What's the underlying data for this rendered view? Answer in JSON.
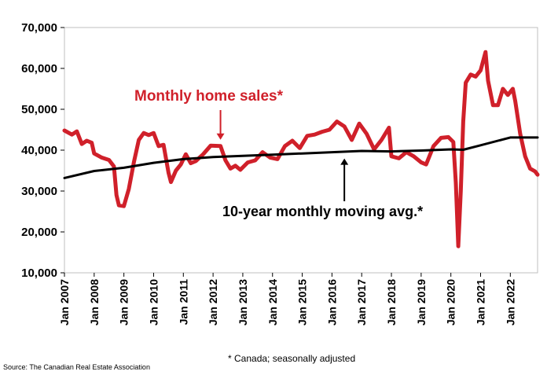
{
  "chart_data": {
    "type": "line",
    "title": "",
    "xlabel": "",
    "ylabel": "",
    "ylim": [
      10000,
      70000
    ],
    "y_ticks": [
      10000,
      20000,
      30000,
      40000,
      50000,
      60000,
      70000
    ],
    "y_tick_labels": [
      "10,000",
      "20,000",
      "30,000",
      "40,000",
      "50,000",
      "60,000",
      "70,000"
    ],
    "x_range": [
      "2007-01",
      "2022-12"
    ],
    "x_tick_labels": [
      "Jan 2007",
      "Jan 2008",
      "Jan 2009",
      "Jan 2010",
      "Jan 2011",
      "Jan 2012",
      "Jan 2013",
      "Jan 2014",
      "Jan 2015",
      "Jan 2016",
      "Jan 2017",
      "Jan 2018",
      "Jan 2019",
      "Jan 2020",
      "Jan 2021",
      "Jan 2022"
    ],
    "grid": false,
    "series": [
      {
        "name": "Monthly home sales*",
        "color": "#d0202a",
        "points": [
          [
            "2007-01",
            44800
          ],
          [
            "2007-04",
            43800
          ],
          [
            "2007-06",
            44600
          ],
          [
            "2007-08",
            41500
          ],
          [
            "2007-10",
            42300
          ],
          [
            "2007-12",
            41800
          ],
          [
            "2008-01",
            39200
          ],
          [
            "2008-04",
            38200
          ],
          [
            "2008-07",
            37600
          ],
          [
            "2008-09",
            36000
          ],
          [
            "2008-10",
            29000
          ],
          [
            "2008-11",
            26500
          ],
          [
            "2009-01",
            26300
          ],
          [
            "2009-03",
            30500
          ],
          [
            "2009-05",
            37000
          ],
          [
            "2009-07",
            42500
          ],
          [
            "2009-09",
            44200
          ],
          [
            "2009-11",
            43700
          ],
          [
            "2010-01",
            44200
          ],
          [
            "2010-03",
            41000
          ],
          [
            "2010-05",
            41300
          ],
          [
            "2010-07",
            34500
          ],
          [
            "2010-08",
            32200
          ],
          [
            "2010-10",
            35000
          ],
          [
            "2010-12",
            36500
          ],
          [
            "2011-02",
            39000
          ],
          [
            "2011-04",
            36800
          ],
          [
            "2011-06",
            37300
          ],
          [
            "2011-09",
            39000
          ],
          [
            "2011-12",
            41100
          ],
          [
            "2012-04",
            41000
          ],
          [
            "2012-06",
            37500
          ],
          [
            "2012-08",
            35500
          ],
          [
            "2012-10",
            36200
          ],
          [
            "2012-12",
            35200
          ],
          [
            "2013-03",
            37000
          ],
          [
            "2013-06",
            37500
          ],
          [
            "2013-09",
            39500
          ],
          [
            "2013-12",
            38200
          ],
          [
            "2014-03",
            37800
          ],
          [
            "2014-06",
            41000
          ],
          [
            "2014-09",
            42300
          ],
          [
            "2014-12",
            40500
          ],
          [
            "2015-03",
            43500
          ],
          [
            "2015-06",
            43800
          ],
          [
            "2015-09",
            44500
          ],
          [
            "2015-12",
            45000
          ],
          [
            "2016-03",
            47000
          ],
          [
            "2016-06",
            45800
          ],
          [
            "2016-09",
            42500
          ],
          [
            "2016-12",
            46500
          ],
          [
            "2017-03",
            44000
          ],
          [
            "2017-06",
            40200
          ],
          [
            "2017-09",
            42500
          ],
          [
            "2017-12",
            45500
          ],
          [
            "2018-01",
            38500
          ],
          [
            "2018-04",
            38000
          ],
          [
            "2018-07",
            39500
          ],
          [
            "2018-10",
            38500
          ],
          [
            "2019-01",
            37000
          ],
          [
            "2019-03",
            36500
          ],
          [
            "2019-06",
            41000
          ],
          [
            "2019-09",
            43000
          ],
          [
            "2019-12",
            43200
          ],
          [
            "2020-02",
            42000
          ],
          [
            "2020-03",
            32000
          ],
          [
            "2020-04",
            16500
          ],
          [
            "2020-05",
            30000
          ],
          [
            "2020-06",
            47000
          ],
          [
            "2020-07",
            56500
          ],
          [
            "2020-09",
            58500
          ],
          [
            "2020-11",
            58000
          ],
          [
            "2021-01",
            59500
          ],
          [
            "2021-03",
            64000
          ],
          [
            "2021-04",
            57000
          ],
          [
            "2021-06",
            51000
          ],
          [
            "2021-08",
            51000
          ],
          [
            "2021-10",
            55000
          ],
          [
            "2021-12",
            53500
          ],
          [
            "2022-02",
            55000
          ],
          [
            "2022-03",
            52000
          ],
          [
            "2022-05",
            44000
          ],
          [
            "2022-07",
            38500
          ],
          [
            "2022-09",
            35500
          ],
          [
            "2022-11",
            34800
          ],
          [
            "2022-12",
            34000
          ]
        ]
      },
      {
        "name": "10-year monthly moving avg.*",
        "color": "#000000",
        "points": [
          [
            "2007-01",
            33200
          ],
          [
            "2008-01",
            34900
          ],
          [
            "2009-01",
            35700
          ],
          [
            "2010-01",
            36900
          ],
          [
            "2011-01",
            37800
          ],
          [
            "2012-01",
            38300
          ],
          [
            "2013-01",
            38600
          ],
          [
            "2014-01",
            38900
          ],
          [
            "2015-01",
            39200
          ],
          [
            "2016-01",
            39500
          ],
          [
            "2017-01",
            39800
          ],
          [
            "2018-01",
            39700
          ],
          [
            "2019-01",
            39900
          ],
          [
            "2020-01",
            40200
          ],
          [
            "2020-06",
            40100
          ],
          [
            "2021-01",
            41200
          ],
          [
            "2022-01",
            43100
          ],
          [
            "2022-12",
            43100
          ]
        ]
      }
    ],
    "annotations": [
      {
        "text": "Monthly home sales*",
        "color": "#d0202a",
        "arrow_at": "2012-04",
        "arrow_value": 41000
      },
      {
        "text": "10-year monthly moving avg.*",
        "color": "#000000",
        "arrow_at": "2016-06",
        "arrow_value": 39500
      }
    ],
    "footnote": "* Canada; seasonally adjusted",
    "source": "Source: The Canadian Real Estate Association"
  }
}
